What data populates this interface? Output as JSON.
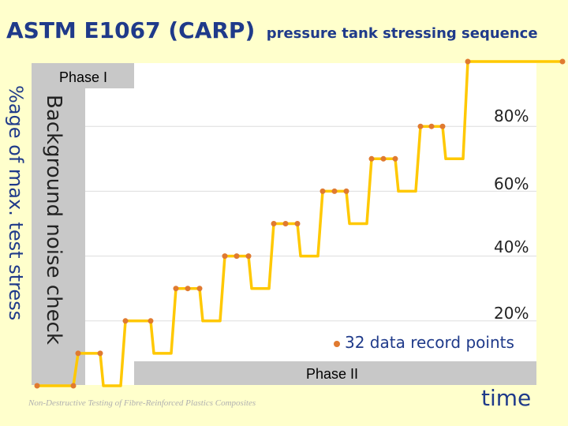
{
  "header": {
    "title": "ASTM E1067 (CARP)",
    "subtitle": "pressure tank stressing sequence"
  },
  "colors": {
    "line": "#ffc800",
    "marker": "#e07a30",
    "panel": "#c8c8c8",
    "title": "#1f3a8a"
  },
  "chart_data": {
    "type": "line",
    "phase_labels": [
      "Phase I",
      "Phase II"
    ],
    "percent_labels": [
      "80%",
      "60%",
      "40%",
      "20%"
    ],
    "ylabel": "%age of max. test stress",
    "annotation": "Background noise check",
    "legend": "32 data record points",
    "xlabel": "time",
    "footer": "Non-Destructive Testing of Fibre-Reinforced Plastics Composites",
    "levels": [
      0,
      10,
      20,
      30,
      40,
      50,
      60,
      70,
      80,
      100
    ],
    "dwell_points_per_level": [
      2,
      2,
      2,
      3,
      3,
      3,
      3,
      3,
      3,
      2
    ]
  }
}
